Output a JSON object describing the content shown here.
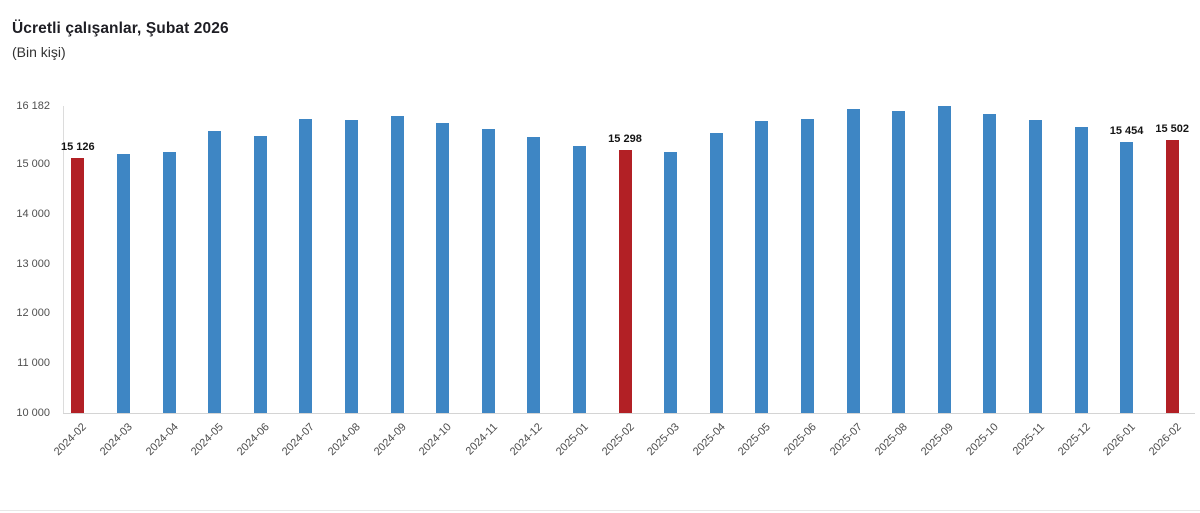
{
  "chart_data": {
    "type": "bar",
    "title": "Ücretli çalışanlar, Şubat 2026",
    "subtitle": "(Bin kişi)",
    "ylabel": "Bin kişi",
    "xlabel": "",
    "categories": [
      "2024-02",
      "2024-03",
      "2024-04",
      "2024-05",
      "2024-06",
      "2024-07",
      "2024-08",
      "2024-09",
      "2024-10",
      "2024-11",
      "2024-12",
      "2025-01",
      "2025-02",
      "2025-03",
      "2025-04",
      "2025-05",
      "2025-06",
      "2025-07",
      "2025-08",
      "2025-09",
      "2025-10",
      "2025-11",
      "2025-12",
      "2026-01",
      "2026-02"
    ],
    "values": [
      15126,
      15210,
      15262,
      15688,
      15586,
      15912,
      15901,
      15980,
      15848,
      15714,
      15565,
      15378,
      15298,
      15264,
      15646,
      15874,
      15914,
      16116,
      16082,
      16182,
      16016,
      15900,
      15766,
      15454,
      15502
    ],
    "highlighted_indices": [
      0,
      12,
      24
    ],
    "labeled_points": [
      {
        "index": 0,
        "label": "15 126"
      },
      {
        "index": 12,
        "label": "15 298"
      },
      {
        "index": 23,
        "label": "15 454"
      },
      {
        "index": 24,
        "label": "15 502"
      }
    ],
    "y_ticks": [
      10000,
      11000,
      12000,
      13000,
      14000,
      15000,
      16182
    ],
    "y_tick_labels": [
      "10 000",
      "11 000",
      "12 000",
      "13 000",
      "14 000",
      "15 000",
      "16 182"
    ],
    "ylim": [
      10000,
      16182
    ],
    "grid": false,
    "legend": false,
    "colors": {
      "bar": "#3e86c4",
      "highlight": "#b22025",
      "axis_line": "#d9d9d9",
      "tick_text": "#4d4d4d",
      "label_text": "#141414"
    }
  }
}
